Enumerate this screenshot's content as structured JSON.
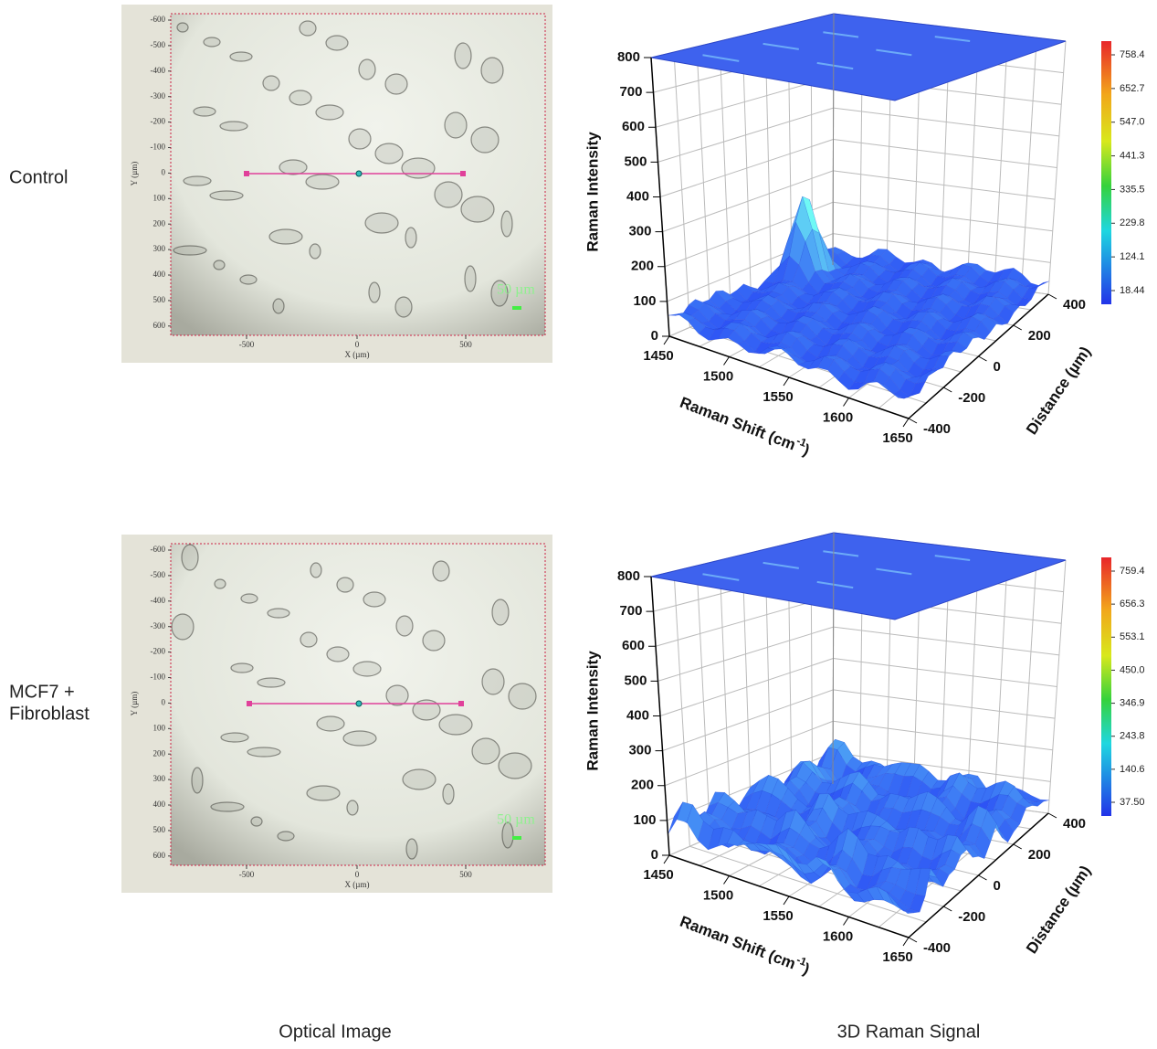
{
  "rows": [
    {
      "label": [
        "Control"
      ],
      "colorbar": [
        "758.4",
        "652.7",
        "547.0",
        "441.3",
        "335.5",
        "229.8",
        "124.1",
        "18.44"
      ]
    },
    {
      "label": [
        "MCF7 +",
        "Fibroblast"
      ],
      "colorbar": [
        "759.4",
        "656.3",
        "553.1",
        "450.0",
        "346.9",
        "243.8",
        "140.6",
        "37.50"
      ]
    }
  ],
  "optical_axes": {
    "y_ticks": [
      "-600",
      "-500",
      "-400",
      "-300",
      "-200",
      "-100",
      "0",
      "100",
      "200",
      "300",
      "400",
      "500",
      "600"
    ],
    "x_ticks": [
      "-500",
      "0",
      "500"
    ],
    "x_label": "X (µm)",
    "y_label": "Y (µm)",
    "scale_bar": "50 µm"
  },
  "raman_axes": {
    "z_ticks": [
      "0",
      "100",
      "200",
      "300",
      "400",
      "500",
      "600",
      "700",
      "800"
    ],
    "shift_ticks": [
      "1450",
      "1500",
      "1550",
      "1600",
      "1650"
    ],
    "distance_ticks": [
      "400",
      "200",
      "0",
      "-200",
      "-400"
    ],
    "z_label": "Raman Intensity",
    "shift_label": "Raman Shift (cm",
    "shift_label_sup": "-1",
    "shift_label_end": ")",
    "distance_label": "Distance (µm)"
  },
  "captions": {
    "optical": "Optical Image",
    "raman": "3D Raman Signal"
  }
}
